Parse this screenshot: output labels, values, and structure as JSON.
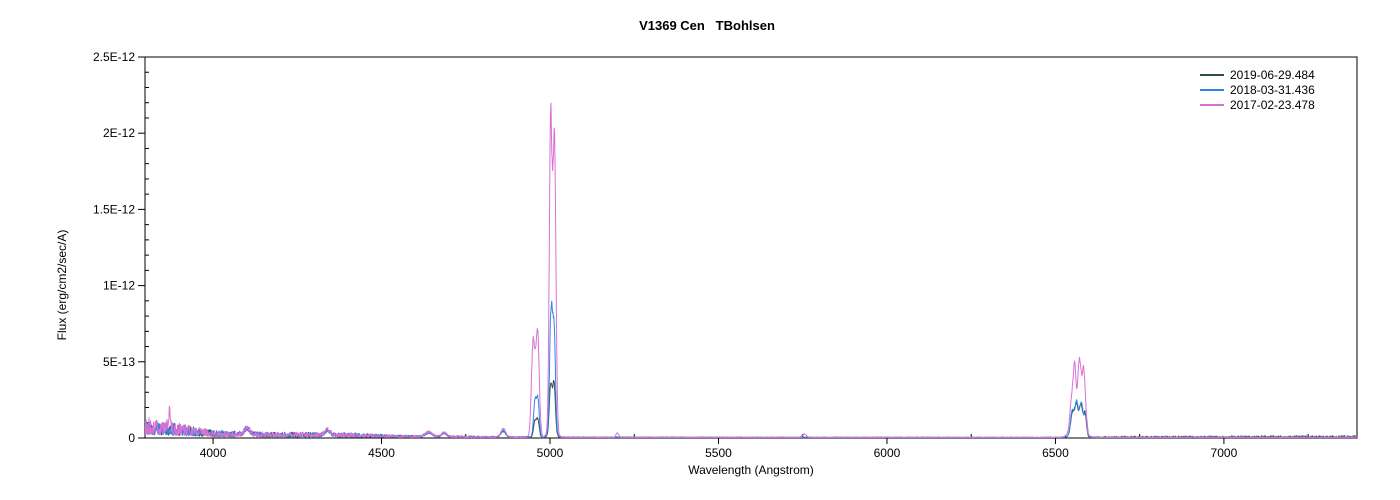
{
  "header": {
    "title": "V1369 Cen   TBohlsen"
  },
  "chart_data": {
    "type": "line",
    "title": "V1369 Cen   TBohlsen",
    "xlabel": "Wavelength (Angstrom)",
    "ylabel": "Flux (erg/cm2/sec/A)",
    "xlim": [
      3798,
      7395
    ],
    "ylim": [
      0,
      2.5e-12
    ],
    "grid": false,
    "legend_position": "top-right",
    "x_ticks": [
      {
        "value": 4000,
        "label": "4000"
      },
      {
        "value": 4500,
        "label": "4500"
      },
      {
        "value": 5000,
        "label": "5000"
      },
      {
        "value": 5500,
        "label": "5500"
      },
      {
        "value": 6000,
        "label": "6000"
      },
      {
        "value": 6500,
        "label": "6500"
      },
      {
        "value": 7000,
        "label": "7000"
      }
    ],
    "x_minor_step": 250,
    "y_ticks": [
      {
        "value": 0,
        "label": "0"
      },
      {
        "value": 5e-13,
        "label": "5E-13"
      },
      {
        "value": 1e-12,
        "label": "1E-12"
      },
      {
        "value": 1.5e-12,
        "label": "1.5E-12"
      },
      {
        "value": 2e-12,
        "label": "2E-12"
      },
      {
        "value": 2.5e-12,
        "label": "2.5E-12"
      }
    ],
    "y_minor_step": 1e-13,
    "series": [
      {
        "name": "2019-06-29.484",
        "color": "#2F4F4F",
        "seed": 20190629,
        "peaks": [
          {
            "center": 4101,
            "peak": 4e-14,
            "sigma": 8
          },
          {
            "center": 4340,
            "peak": 3e-14,
            "sigma": 8
          },
          {
            "center": 4640,
            "peak": 2.8e-14,
            "sigma": 10
          },
          {
            "center": 4686,
            "peak": 2.5e-14,
            "sigma": 7
          },
          {
            "center": 4861,
            "peak": 3.8e-14,
            "sigma": 7
          },
          {
            "center": 4955,
            "peak": 1.05e-13,
            "sigma": 4
          },
          {
            "center": 4964,
            "peak": 1.15e-13,
            "sigma": 4
          },
          {
            "center": 5002,
            "peak": 3.1e-13,
            "sigma": 4
          },
          {
            "center": 5012,
            "peak": 3.2e-13,
            "sigma": 4
          },
          {
            "center": 5007,
            "peak": 4e-14,
            "sigma": 9
          },
          {
            "center": 6550,
            "peak": 1.3e-13,
            "sigma": 5
          },
          {
            "center": 6562,
            "peak": 1.8e-13,
            "sigma": 5
          },
          {
            "center": 6576,
            "peak": 1.9e-13,
            "sigma": 5
          },
          {
            "center": 6588,
            "peak": 1.4e-13,
            "sigma": 4
          },
          {
            "center": 6565,
            "peak": 4e-14,
            "sigma": 16
          }
        ],
        "noise_envelope": [
          [
            3798,
            1.3e-13
          ],
          [
            3850,
            1.1e-13
          ],
          [
            3950,
            7.5e-14
          ],
          [
            4000,
            5e-14
          ],
          [
            4150,
            4e-14
          ],
          [
            4400,
            3.5e-14
          ],
          [
            4550,
            2e-14
          ],
          [
            4800,
            1.2e-14
          ],
          [
            5100,
            8e-15
          ],
          [
            5600,
            7e-15
          ],
          [
            6450,
            6e-15
          ],
          [
            6700,
            1.2e-14
          ],
          [
            7000,
            1.4e-14
          ],
          [
            7395,
            1.6e-14
          ]
        ]
      },
      {
        "name": "2018-03-31.436",
        "color": "#2F87E0",
        "seed": 20180331,
        "peaks": [
          {
            "center": 4101,
            "peak": 4e-14,
            "sigma": 8
          },
          {
            "center": 4340,
            "peak": 3e-14,
            "sigma": 8
          },
          {
            "center": 4640,
            "peak": 2.5e-14,
            "sigma": 10
          },
          {
            "center": 4686,
            "peak": 2.4e-14,
            "sigma": 7
          },
          {
            "center": 4861,
            "peak": 4.2e-14,
            "sigma": 7
          },
          {
            "center": 4955,
            "peak": 2.3e-13,
            "sigma": 4
          },
          {
            "center": 4964,
            "peak": 2.5e-13,
            "sigma": 4
          },
          {
            "center": 5003,
            "peak": 7.4e-13,
            "sigma": 4
          },
          {
            "center": 5012,
            "peak": 6.4e-13,
            "sigma": 4
          },
          {
            "center": 5007,
            "peak": 8e-14,
            "sigma": 9
          },
          {
            "center": 6550,
            "peak": 1.5e-13,
            "sigma": 5
          },
          {
            "center": 6563,
            "peak": 1.9e-13,
            "sigma": 5
          },
          {
            "center": 6577,
            "peak": 2e-13,
            "sigma": 5
          },
          {
            "center": 6590,
            "peak": 1.5e-13,
            "sigma": 4
          },
          {
            "center": 6565,
            "peak": 4e-14,
            "sigma": 16
          }
        ],
        "noise_envelope": [
          [
            3798,
            1.3e-13
          ],
          [
            3850,
            1.1e-13
          ],
          [
            3950,
            7.5e-14
          ],
          [
            4000,
            5e-14
          ],
          [
            4150,
            4e-14
          ],
          [
            4400,
            3.5e-14
          ],
          [
            4550,
            2e-14
          ],
          [
            4800,
            1.2e-14
          ],
          [
            5100,
            8e-15
          ],
          [
            5600,
            7e-15
          ],
          [
            6450,
            6e-15
          ],
          [
            6700,
            8e-15
          ],
          [
            7395,
            8e-15
          ]
        ]
      },
      {
        "name": "2017-02-23.478",
        "color": "#DA70D6",
        "seed": 20170223,
        "peaks": [
          {
            "center": 3870,
            "peak": 1.1e-13,
            "sigma": 3
          },
          {
            "center": 4101,
            "peak": 4.5e-14,
            "sigma": 8
          },
          {
            "center": 4340,
            "peak": 3.5e-14,
            "sigma": 8
          },
          {
            "center": 4640,
            "peak": 3.2e-14,
            "sigma": 10
          },
          {
            "center": 4686,
            "peak": 3e-14,
            "sigma": 7
          },
          {
            "center": 4861,
            "peak": 5.5e-14,
            "sigma": 7
          },
          {
            "center": 4950,
            "peak": 6.3e-13,
            "sigma": 5
          },
          {
            "center": 4963,
            "peak": 7e-13,
            "sigma": 5
          },
          {
            "center": 5002,
            "peak": 1.95e-12,
            "sigma": 4
          },
          {
            "center": 5013,
            "peak": 1.85e-12,
            "sigma": 4.5
          },
          {
            "center": 5007,
            "peak": 1e-13,
            "sigma": 10
          },
          {
            "center": 5200,
            "peak": 3e-14,
            "sigma": 4
          },
          {
            "center": 5755,
            "peak": 2.2e-14,
            "sigma": 6
          },
          {
            "center": 6548,
            "peak": 2e-13,
            "sigma": 5
          },
          {
            "center": 6557,
            "peak": 3.8e-13,
            "sigma": 4
          },
          {
            "center": 6571,
            "peak": 4.3e-13,
            "sigma": 5
          },
          {
            "center": 6584,
            "peak": 4e-13,
            "sigma": 5
          },
          {
            "center": 6565,
            "peak": 8e-14,
            "sigma": 18
          }
        ],
        "noise_envelope": [
          [
            3798,
            1.4e-13
          ],
          [
            3850,
            1.2e-13
          ],
          [
            3950,
            8e-14
          ],
          [
            4000,
            5e-14
          ],
          [
            4150,
            4e-14
          ],
          [
            4400,
            3.5e-14
          ],
          [
            4550,
            2e-14
          ],
          [
            4800,
            1.2e-14
          ],
          [
            5100,
            8e-15
          ],
          [
            5600,
            7e-15
          ],
          [
            6450,
            6e-15
          ],
          [
            6700,
            8e-15
          ],
          [
            7395,
            9e-15
          ]
        ]
      }
    ]
  }
}
